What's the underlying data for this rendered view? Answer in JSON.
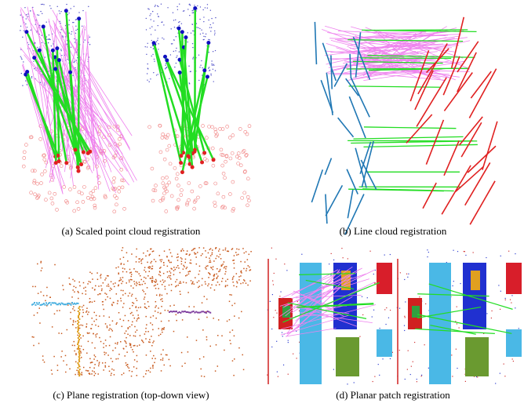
{
  "figure": {
    "panels": [
      {
        "caption": "(a) Scaled point cloud registration"
      },
      {
        "caption": "(b) Line cloud registration"
      },
      {
        "caption": "(c) Plane registration (top-down view)"
      },
      {
        "caption": "(d) Planar patch registration"
      }
    ]
  }
}
